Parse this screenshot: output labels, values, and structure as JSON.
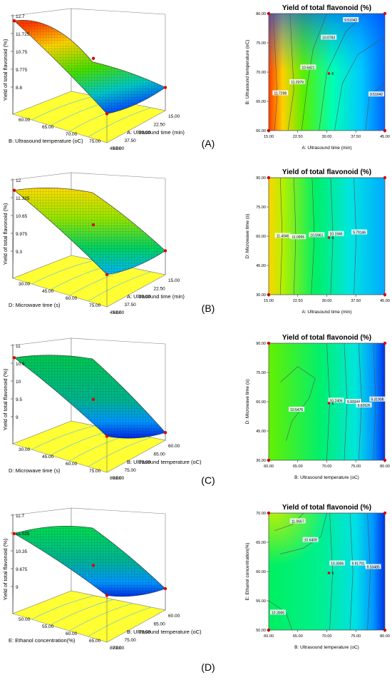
{
  "panels": [
    {
      "label": "(A)",
      "surface": {
        "type": "3d-surface",
        "zlabel": "Yield of total flavonoid (%)",
        "zticks": [
          "8.8",
          "9.775",
          "10.75",
          "11.725",
          "12.7"
        ],
        "xlabel": "B: Ultrasound temperature (oC)",
        "xticks": [
          "60.00",
          "65.00",
          "70.00",
          "75.00",
          "80.00"
        ],
        "ylabel": "A: Ultrasound time (min)",
        "yticks": [
          "45.00",
          "37.50",
          "30.00",
          "22.50",
          "15.00"
        ],
        "corner_values": {
          "x_min_y_far": 12.7,
          "x_max_y_far": 10.3,
          "x_min_y_near": 9.1,
          "x_max_y_near": 8.9
        }
      },
      "contour": {
        "type": "contour",
        "title": "Yield of total flavonoid (%)",
        "xlabel": "A: Ultrasound time (min)",
        "xticks": [
          "15.00",
          "22.50",
          "30.00",
          "37.50",
          "45.00"
        ],
        "xlim": [
          15,
          45
        ],
        "ylabel": "B: Ultrasound temperature (oC)",
        "yticks": [
          "60.00",
          "65.00",
          "70.00",
          "75.00",
          "80.00"
        ],
        "ylim": [
          60,
          80
        ],
        "contour_labels": [
          {
            "text": "11.7298",
            "x": 18.0,
            "y": 66.4
          },
          {
            "text": "11.2079",
            "x": 22.4,
            "y": 68.3
          },
          {
            "text": "10.6421",
            "x": 25.2,
            "y": 70.8
          },
          {
            "text": "10.0783",
            "x": 30.5,
            "y": 75.9
          },
          {
            "text": "9.51042",
            "x": 36.2,
            "y": 78.9
          },
          {
            "text": "9.51042",
            "x": 42.8,
            "y": 66.2
          }
        ],
        "center_label": "6"
      }
    },
    {
      "label": "(B)",
      "surface": {
        "type": "3d-surface",
        "zlabel": "Yield of total flavonoid (%)",
        "zticks": [
          "9.3",
          "9.975",
          "10.65",
          "11.325",
          "12"
        ],
        "xlabel": "D: Microwave time (s)",
        "xticks": [
          "30.00",
          "45.00",
          "60.00",
          "75.00",
          "90.00"
        ],
        "ylabel": "A: Ultrasound time (min)",
        "yticks": [
          "45.00",
          "37.50",
          "30.00",
          "22.50",
          "15.00"
        ],
        "corner_values": {
          "x_min_y_far": 11.8,
          "x_max_y_far": 11.9,
          "x_min_y_near": 9.6,
          "x_max_y_near": 9.4
        }
      },
      "contour": {
        "type": "contour",
        "title": "Yield of total flavonoid (%)",
        "xlabel": "A: Ultrasound time (min)",
        "xticks": [
          "15.00",
          "22.50",
          "30.00",
          "37.50",
          "45.00"
        ],
        "xlim": [
          15,
          45
        ],
        "ylabel": "D: Microwave time (s)",
        "yticks": [
          "30.00",
          "45.00",
          "60.00",
          "75.00",
          "90.00"
        ],
        "ylim": [
          30,
          90
        ],
        "contour_labels": [
          {
            "text": "11.4046",
            "x": 18.6,
            "y": 60.2
          },
          {
            "text": "11.0955",
            "x": 22.6,
            "y": 59.6
          },
          {
            "text": "10.5961",
            "x": 27.4,
            "y": 60.6
          },
          {
            "text": "10.1946",
            "x": 32.4,
            "y": 61.2
          },
          {
            "text": "9.79146",
            "x": 38.4,
            "y": 62.0
          }
        ],
        "center_label": "6"
      }
    },
    {
      "label": "(C)",
      "surface": {
        "type": "3d-surface",
        "zlabel": "Yield of total flavonoid (%)",
        "zticks": [
          "9",
          "9.5",
          "10",
          "10.5",
          "11"
        ],
        "xlabel": "D: Microwave time (s)",
        "xticks": [
          "30.00",
          "45.00",
          "60.00",
          "75.00",
          "90.00"
        ],
        "ylabel": "B: Ultrasound temperature (oC)",
        "yticks": [
          "80.00",
          "75.00",
          "70.00",
          "65.00",
          "60.00"
        ],
        "corner_values": {
          "x_min_y_far": 10.8,
          "x_max_y_far": 10.9,
          "x_min_y_near": 9.3,
          "x_max_y_near": 8.6
        }
      },
      "contour": {
        "type": "contour",
        "title": "Yield of total flavonoid (%)",
        "xlabel": "B: Ultrasound temperature (oC)",
        "xticks": [
          "60.00",
          "65.00",
          "70.00",
          "75.00",
          "80.00"
        ],
        "xlim": [
          60,
          80
        ],
        "ylabel": "D: Microwave time (s)",
        "yticks": [
          "30.00",
          "45.00",
          "60.00",
          "75.00",
          "90.00"
        ],
        "ylim": [
          30,
          90
        ],
        "contour_labels": [
          {
            "text": "10.5476",
            "x": 64.8,
            "y": 56.0
          },
          {
            "text": "10.2406",
            "x": 71.6,
            "y": 60.6
          },
          {
            "text": "9.93344",
            "x": 74.6,
            "y": 60.0
          },
          {
            "text": "9.62626",
            "x": 76.4,
            "y": 58.2
          },
          {
            "text": "9.31908",
            "x": 78.7,
            "y": 61.2
          }
        ],
        "center_label": "6"
      }
    },
    {
      "label": "(D)",
      "surface": {
        "type": "3d-surface",
        "zlabel": "Yield of total flavonoid (%)",
        "zticks": [
          "9",
          "9.675",
          "10.35",
          "11.025",
          "11.7"
        ],
        "xlabel": "E: Ethanol concentration(%)",
        "xticks": [
          "50.00",
          "55.00",
          "60.00",
          "65.00",
          "70.00"
        ],
        "ylabel": "B: Ultrasound temperature (oC)",
        "yticks": [
          "80.00",
          "75.00",
          "70.00",
          "65.00",
          "60.00"
        ],
        "corner_values": {
          "x_min_y_far": 11.2,
          "x_max_y_far": 11.6,
          "x_min_y_near": 9.7,
          "x_max_y_near": 9.0
        }
      },
      "contour": {
        "type": "contour",
        "title": "Yield of total flavonoid (%)",
        "xlabel": "B: Ultrasound temperature (oC)",
        "xticks": [
          "60.00",
          "65.00",
          "70.00",
          "75.00",
          "80.00"
        ],
        "xlim": [
          60,
          80
        ],
        "ylabel": "E: Ethanol concentration(%)",
        "yticks": [
          "50.00",
          "55.00",
          "60.00",
          "65.00",
          "70.00"
        ],
        "ylim": [
          50,
          70
        ],
        "contour_labels": [
          {
            "text": "11.0667",
            "x": 65.0,
            "y": 68.6
          },
          {
            "text": "10.6409",
            "x": 67.2,
            "y": 65.4
          },
          {
            "text": "10.3006",
            "x": 61.6,
            "y": 53.0
          },
          {
            "text": "10.3006",
            "x": 71.8,
            "y": 61.4
          },
          {
            "text": "9.91791",
            "x": 75.4,
            "y": 61.4
          },
          {
            "text": "9.53485",
            "x": 78.0,
            "y": 60.8
          }
        ],
        "center_label": "6"
      }
    }
  ],
  "chart_data": [
    {
      "type": "heatmap",
      "title": "Yield of total flavonoid (%)",
      "xlabel": "A: Ultrasound time (min)",
      "ylabel": "B: Ultrasound temperature (oC)",
      "xlim": [
        15,
        45
      ],
      "ylim": [
        60,
        80
      ],
      "contour_levels": [
        11.7298,
        11.2079,
        10.6421,
        10.0783,
        9.51042
      ],
      "surface_zlim": [
        8.8,
        12.7
      ]
    },
    {
      "type": "heatmap",
      "title": "Yield of total flavonoid (%)",
      "xlabel": "A: Ultrasound time (min)",
      "ylabel": "D: Microwave time (s)",
      "xlim": [
        15,
        45
      ],
      "ylim": [
        30,
        90
      ],
      "contour_levels": [
        11.4046,
        11.0955,
        10.5961,
        10.1946,
        9.79146
      ],
      "surface_zlim": [
        9.3,
        12
      ]
    },
    {
      "type": "heatmap",
      "title": "Yield of total flavonoid (%)",
      "xlabel": "B: Ultrasound temperature (oC)",
      "ylabel": "D: Microwave time (s)",
      "xlim": [
        60,
        80
      ],
      "ylim": [
        30,
        90
      ],
      "contour_levels": [
        10.5476,
        10.2406,
        9.93344,
        9.62626,
        9.31908
      ],
      "surface_zlim": [
        9,
        11
      ]
    },
    {
      "type": "heatmap",
      "title": "Yield of total flavonoid (%)",
      "xlabel": "B: Ultrasound temperature (oC)",
      "ylabel": "E: Ethanol concentration(%)",
      "xlim": [
        60,
        80
      ],
      "ylim": [
        50,
        70
      ],
      "contour_levels": [
        11.0667,
        10.6409,
        10.3006,
        9.91791,
        9.53485
      ],
      "surface_zlim": [
        9,
        11.7
      ]
    }
  ]
}
